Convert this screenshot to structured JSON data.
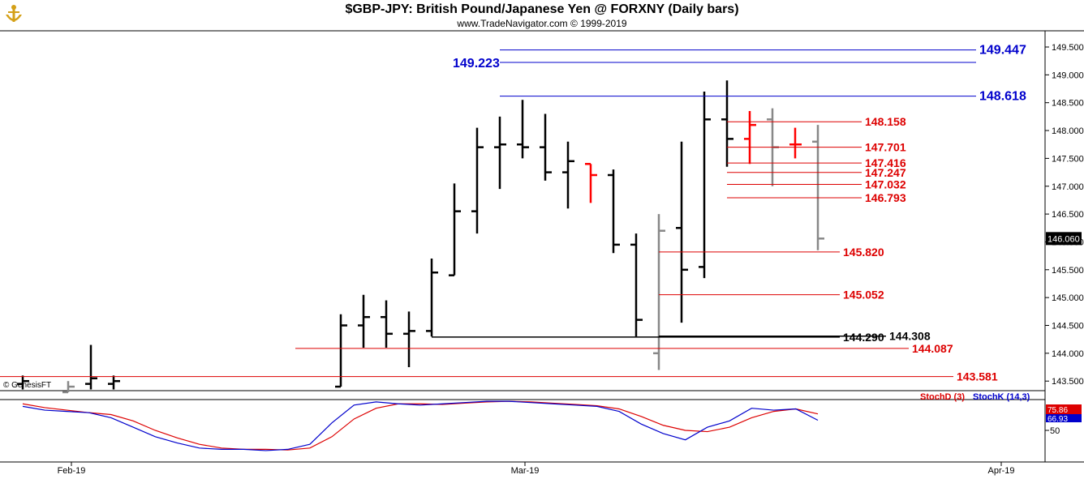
{
  "header": {
    "title": "$GBP-JPY:  British Pound/Japanese Yen @ FORXNY  (Daily bars)",
    "subtitle": "www.TradeNavigator.com © 1999-2019"
  },
  "watermark": "© GenesisFT",
  "colors": {
    "bars": "#000000",
    "down_bars": "#ff0000",
    "gray_bars": "#888888",
    "level_blue": "#0000cc",
    "level_red": "#dd0000",
    "stochD": "#dd0000",
    "stochK": "#0000cc"
  },
  "chart_data": {
    "type": "ohlc",
    "y_ticks": [
      "149.500",
      "149.000",
      "148.500",
      "148.000",
      "147.500",
      "147.000",
      "146.500",
      "146.000",
      "145.500",
      "145.000",
      "144.500",
      "144.000",
      "143.500"
    ],
    "x_ticks": [
      "Feb-19",
      "Mar-19",
      "Apr-19"
    ],
    "last_price": "146.060",
    "bars": [
      {
        "o": 143.45,
        "h": 143.6,
        "l": 143.35,
        "c": 143.5,
        "color": "black"
      },
      {
        "o": 143.3,
        "h": 143.5,
        "l": 143.3,
        "c": 143.4,
        "color": "gray"
      },
      {
        "o": 143.45,
        "h": 144.15,
        "l": 143.35,
        "c": 143.55,
        "color": "black"
      },
      {
        "o": 143.45,
        "h": 143.6,
        "l": 143.35,
        "c": 143.5,
        "color": "black"
      },
      {
        "o": 143.4,
        "h": 144.7,
        "l": 143.4,
        "c": 144.5,
        "color": "black"
      },
      {
        "o": 144.5,
        "h": 145.05,
        "l": 144.1,
        "c": 144.65,
        "color": "black"
      },
      {
        "o": 144.65,
        "h": 144.95,
        "l": 144.1,
        "c": 144.35,
        "color": "black"
      },
      {
        "o": 144.35,
        "h": 144.75,
        "l": 143.75,
        "c": 144.4,
        "color": "black"
      },
      {
        "o": 144.4,
        "h": 145.7,
        "l": 144.3,
        "c": 145.45,
        "color": "black"
      },
      {
        "o": 145.4,
        "h": 147.05,
        "l": 145.4,
        "c": 146.55,
        "color": "black"
      },
      {
        "o": 146.55,
        "h": 148.05,
        "l": 146.15,
        "c": 147.7,
        "color": "black"
      },
      {
        "o": 147.7,
        "h": 148.25,
        "l": 146.95,
        "c": 147.75,
        "color": "black"
      },
      {
        "o": 147.75,
        "h": 148.55,
        "l": 147.5,
        "c": 147.7,
        "color": "black"
      },
      {
        "o": 147.7,
        "h": 148.3,
        "l": 147.1,
        "c": 147.25,
        "color": "black"
      },
      {
        "o": 147.25,
        "h": 147.8,
        "l": 146.6,
        "c": 147.45,
        "color": "black"
      },
      {
        "o": 147.4,
        "h": 147.4,
        "l": 146.7,
        "c": 147.2,
        "color": "red"
      },
      {
        "o": 147.2,
        "h": 147.3,
        "l": 145.8,
        "c": 145.95,
        "color": "black"
      },
      {
        "o": 145.95,
        "h": 146.15,
        "l": 144.3,
        "c": 144.6,
        "color": "black"
      },
      {
        "o": 144.0,
        "h": 146.5,
        "l": 143.7,
        "c": 146.2,
        "color": "gray"
      },
      {
        "o": 146.25,
        "h": 147.8,
        "l": 144.55,
        "c": 145.5,
        "color": "black"
      },
      {
        "o": 145.55,
        "h": 148.7,
        "l": 145.35,
        "c": 148.2,
        "color": "black"
      },
      {
        "o": 148.2,
        "h": 148.9,
        "l": 147.35,
        "c": 147.85,
        "color": "black"
      },
      {
        "o": 147.85,
        "h": 148.35,
        "l": 147.4,
        "c": 148.1,
        "color": "red"
      },
      {
        "o": 148.2,
        "h": 148.4,
        "l": 147.0,
        "c": 147.7,
        "color": "gray"
      },
      {
        "o": 147.75,
        "h": 148.05,
        "l": 147.5,
        "c": 147.75,
        "color": "red"
      },
      {
        "o": 147.8,
        "h": 148.1,
        "l": 145.85,
        "c": 146.06,
        "color": "gray"
      }
    ],
    "levels": [
      {
        "label": "149.447",
        "value": 149.447,
        "color": "blue"
      },
      {
        "label": "149.223",
        "value": 149.223,
        "color": "blue"
      },
      {
        "label": "148.618",
        "value": 148.618,
        "color": "blue"
      },
      {
        "label": "148.158",
        "value": 148.158,
        "color": "red"
      },
      {
        "label": "147.701",
        "value": 147.701,
        "color": "red"
      },
      {
        "label": "147.416",
        "value": 147.416,
        "color": "red"
      },
      {
        "label": "147.247",
        "value": 147.247,
        "color": "red"
      },
      {
        "label": "147.032",
        "value": 147.032,
        "color": "red"
      },
      {
        "label": "146.793",
        "value": 146.793,
        "color": "red"
      },
      {
        "label": "145.820",
        "value": 145.82,
        "color": "red"
      },
      {
        "label": "145.052",
        "value": 145.052,
        "color": "red"
      },
      {
        "label": "144.290",
        "value": 144.29,
        "color": "black"
      },
      {
        "label": "144.308",
        "value": 144.308,
        "color": "black"
      },
      {
        "label": "144.087",
        "value": 144.087,
        "color": "red"
      },
      {
        "label": "143.581",
        "value": 143.581,
        "color": "red"
      }
    ],
    "stochastic": {
      "legend_d": "StochD (3)",
      "legend_k": "StochK (14,3)",
      "value_d": "75.86",
      "value_k": "66.93",
      "tick": "50",
      "k": [
        88,
        82,
        80,
        78,
        70,
        55,
        40,
        30,
        22,
        20,
        20,
        18,
        20,
        28,
        62,
        90,
        95,
        92,
        90,
        92,
        94,
        96,
        96,
        94,
        92,
        90,
        88,
        80,
        60,
        45,
        35,
        55,
        65,
        85,
        82,
        84,
        66
      ],
      "d": [
        92,
        86,
        82,
        78,
        75,
        65,
        50,
        38,
        28,
        22,
        20,
        20,
        19,
        22,
        40,
        68,
        85,
        92,
        92,
        91,
        93,
        95,
        96,
        95,
        93,
        91,
        89,
        84,
        72,
        58,
        50,
        48,
        55,
        70,
        80,
        84,
        76
      ]
    }
  }
}
